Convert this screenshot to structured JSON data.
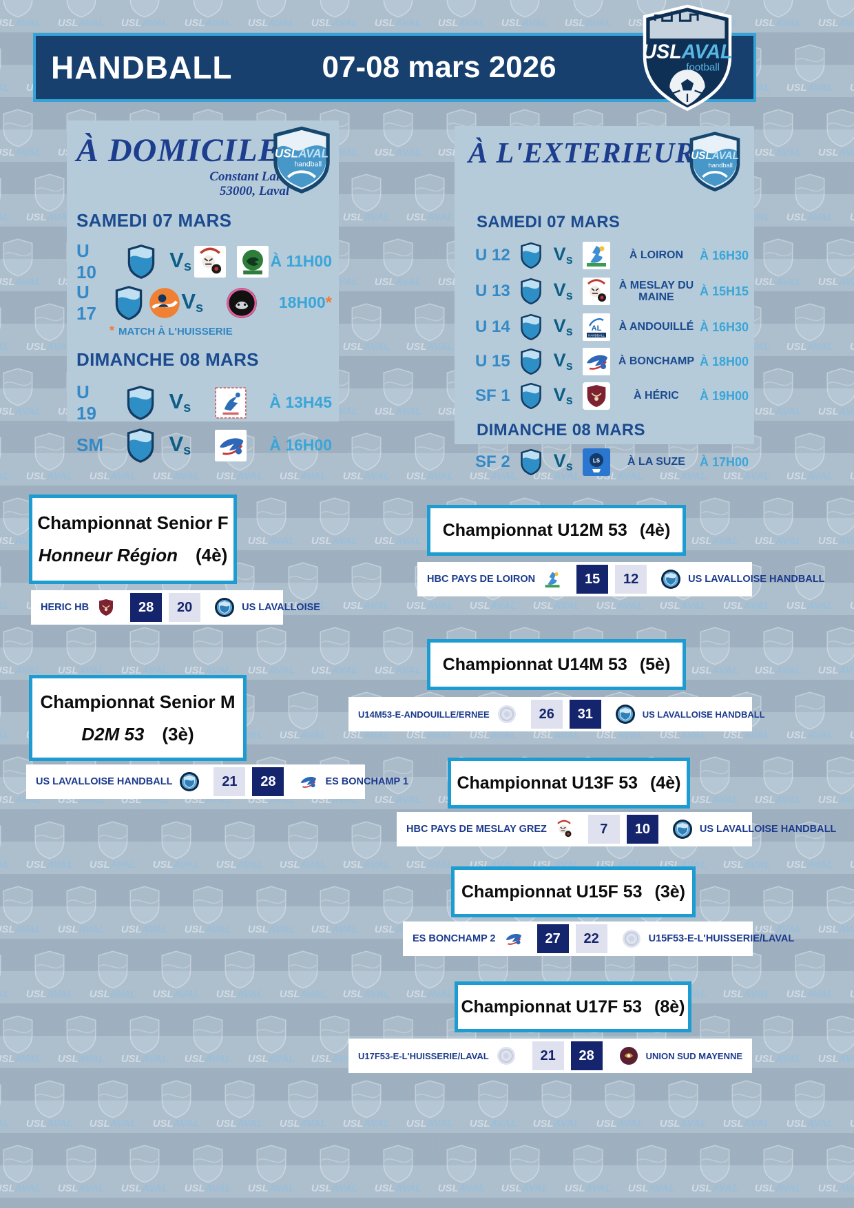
{
  "colors": {
    "page_bg": "#a9bbca",
    "panel_bg": "#b5cbda",
    "header_bg": "#17406f",
    "header_border": "#35a3d8",
    "box_border": "#1d9cd1",
    "navy": "#1b4a8f",
    "light_blue": "#3aa5d8",
    "orange": "#f07c34",
    "score_win_bg": "#15256d",
    "score_lose_bg": "#dfe1ef",
    "team_text": "#1b3a8c"
  },
  "watermark": {
    "word_main": "USL",
    "word_accent": "AVAL"
  },
  "labels": {
    "vs_v": "V",
    "vs_s": "s"
  },
  "header": {
    "title": "HANDBALL",
    "date": "07-08 mars 2026",
    "logo": {
      "main": "USL",
      "accent": "AVAL",
      "sport": "football"
    }
  },
  "home": {
    "title": "À DOMICILE",
    "venue_line1": "Constant Laisies",
    "venue_line2": "53000, Laval",
    "logo": {
      "main": "USL",
      "accent": "AVAL",
      "sport": "handball"
    },
    "day1": "SAMEDI 07 MARS",
    "day2": "DIMANCHE 08 MARS",
    "note_star": "*",
    "note": "MATCH À L'HUISSERIE",
    "matches_day1": [
      {
        "team": "U 10",
        "time": "À 11H00",
        "team_logos": [
          "usl-shield-logo"
        ],
        "opponent_logos": [
          "hbc-meslay-tiger-logo",
          "club-vert-logo"
        ]
      },
      {
        "team": "U 17",
        "time": "18H00",
        "star": "*",
        "team_logos": [
          "usl-shield-logo",
          "laval-orange-logo"
        ],
        "opponent_logos": [
          "panther-club-logo"
        ]
      }
    ],
    "matches_day2": [
      {
        "team": "U 19",
        "time": "À 13H45",
        "team_logos": [
          "usl-shield-logo"
        ],
        "opponent_logos": [
          "st-berthevin-handball-logo"
        ]
      },
      {
        "team": "SM",
        "time": "À 16H00",
        "team_logos": [
          "usl-shield-logo"
        ],
        "opponent_logos": [
          "es-bonchamp-logo"
        ]
      }
    ]
  },
  "away": {
    "title": "À L'EXTERIEUR",
    "logo": {
      "main": "USL",
      "accent": "AVAL",
      "sport": "handball"
    },
    "day1": "SAMEDI 07 MARS",
    "day2": "DIMANCHE 08 MARS",
    "matches_day1": [
      {
        "team": "U 12",
        "place": "À LOIRON",
        "time": "À 16H30",
        "opponent_logo": "loiron-handball-logo"
      },
      {
        "team": "U 13",
        "place": "À MESLAY DU MAINE",
        "time": "À 15H15",
        "opponent_logo": "hbc-meslay-tiger-logo"
      },
      {
        "team": "U 14",
        "place": "À ANDOUILLÉ",
        "time": "À 16H30",
        "opponent_logo": "al-andouille-handball-logo"
      },
      {
        "team": "U 15",
        "place": "À BONCHAMP",
        "time": "À 18H00",
        "opponent_logo": "es-bonchamp-logo"
      },
      {
        "team": "SF 1",
        "place": "À HÉRIC",
        "time": "À 19H00",
        "opponent_logo": "heric-hb-logo"
      }
    ],
    "matches_day2": [
      {
        "team": "SF 2",
        "place": "À LA SUZE",
        "time": "À 17H00",
        "opponent_logo": "la-suze-logo"
      }
    ]
  },
  "results": [
    {
      "title": "Championnat Senior F",
      "subtitle": "Honneur Région",
      "rank": "(4è)",
      "home_team": "HERIC HB",
      "home_score": "28",
      "away_score": "20",
      "away_team": "US LAVALLOISE",
      "winner": "home",
      "home_logo": "heric-hb-logo",
      "away_logo": "usl-round-logo"
    },
    {
      "title": "Championnat Senior M",
      "subtitle": "D2M 53",
      "rank": "(3è)",
      "home_team": "US LAVALLOISE HANDBALL",
      "home_score": "21",
      "away_score": "28",
      "away_team": "ES BONCHAMP 1",
      "winner": "away",
      "home_logo": "usl-round-logo",
      "away_logo": "es-bonchamp-logo"
    },
    {
      "title": "Championnat U12M 53",
      "rank": "(4è)",
      "home_team": "HBC PAYS DE LOIRON",
      "home_score": "15",
      "away_score": "12",
      "away_team": "US LAVALLOISE HANDBALL",
      "winner": "home",
      "home_logo": "loiron-handball-logo",
      "away_logo": "usl-round-logo"
    },
    {
      "title": "Championnat U14M 53",
      "rank": "(5è)",
      "home_team": "U14M53-E-ANDOUILLE/ERNEE",
      "home_score": "26",
      "away_score": "31",
      "away_team": "US LAVALLOISE HANDBALL",
      "winner": "away",
      "home_logo": "pale-badge-logo",
      "away_logo": "usl-round-logo"
    },
    {
      "title": "Championnat U13F 53",
      "rank": "(4è)",
      "home_team": "HBC PAYS DE MESLAY GREZ",
      "home_score": "7",
      "away_score": "10",
      "away_team": "US LAVALLOISE HANDBALL",
      "winner": "away",
      "home_logo": "hbc-meslay-tiger-logo",
      "away_logo": "usl-round-logo"
    },
    {
      "title": "Championnat U15F 53",
      "rank": "(3è)",
      "home_team": "ES BONCHAMP 2",
      "home_score": "27",
      "away_score": "22",
      "away_team": "U15F53-E-L'HUISSERIE/LAVAL",
      "winner": "home",
      "home_logo": "es-bonchamp-logo",
      "away_logo": "pale-badge-logo"
    },
    {
      "title": "Championnat U17F 53",
      "rank": "(8è)",
      "home_team": "U17F53-E-L'HUISSERIE/LAVAL",
      "home_score": "21",
      "away_score": "28",
      "away_team": "UNION SUD MAYENNE",
      "winner": "away",
      "home_logo": "pale-badge-logo",
      "away_logo": "union-sud-mayenne-logo"
    }
  ]
}
